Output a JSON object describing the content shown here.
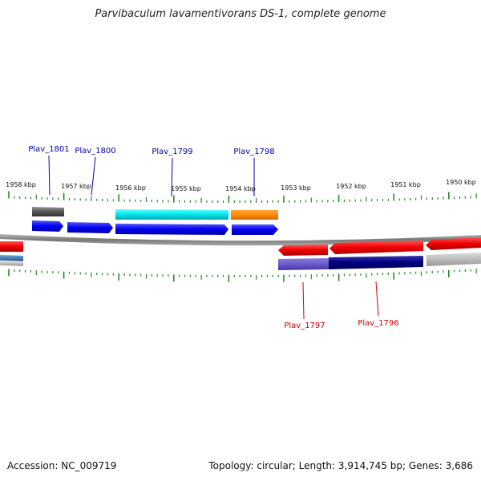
{
  "title": "Parvibaculum lavamentivorans DS-1, complete genome",
  "footer": {
    "accession": "Accession: NC_009719",
    "summary": "Topology: circular; Length: 3,914,745 bp; Genes: 3,686"
  },
  "scale": {
    "unit": "kbp",
    "tick_labels": [
      "1958 kbp",
      "1957 kbp",
      "1956 kbp",
      "1955 kbp",
      "1954 kbp",
      "1953 kbp",
      "1952 kbp",
      "1951 kbp",
      "1950 kbp"
    ]
  },
  "genes": {
    "forward": [
      "Plav_1801",
      "Plav_1800",
      "Plav_1799",
      "Plav_1798"
    ],
    "reverse": [
      "Plav_1797",
      "Plav_1796"
    ]
  },
  "colors": {
    "forward_cds": "#0000ee",
    "reverse_cds": "#ee0000",
    "forward_label": "#0000aa",
    "reverse_label": "#cc0000",
    "tick": "#2a8a2a",
    "backbone": "#888888",
    "cyan_feature": "#00e5ee",
    "orange_feature": "#ff8c00",
    "gray_feature": "#555555",
    "navy_feature": "#000080",
    "slate_feature": "#6a5acd",
    "steel_feature": "#4682b4",
    "light_gray_feature": "#bbbbbb"
  }
}
